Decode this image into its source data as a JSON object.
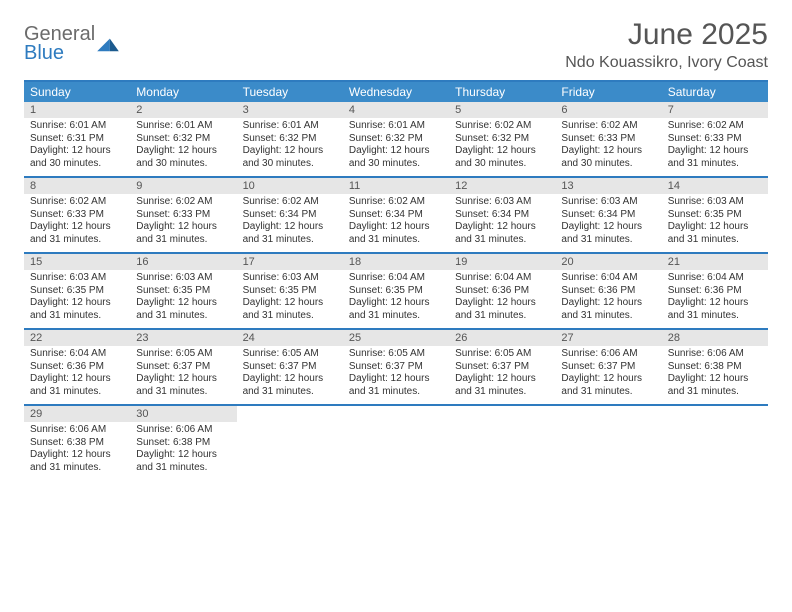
{
  "brand": {
    "word1": "General",
    "word2": "Blue"
  },
  "title": "June 2025",
  "location": "Ndo Kouassikro, Ivory Coast",
  "colors": {
    "header_bg": "#3b8bc9",
    "header_border": "#2e7bbf",
    "daynum_bg": "#e6e6e6",
    "text": "#333333",
    "muted": "#555555",
    "white": "#ffffff"
  },
  "typography": {
    "title_fontsize": 30,
    "location_fontsize": 16,
    "dayname_fontsize": 12,
    "daynum_fontsize": 11,
    "info_fontsize": 10
  },
  "layout": {
    "columns": 7,
    "rows": 5
  },
  "dayNames": [
    "Sunday",
    "Monday",
    "Tuesday",
    "Wednesday",
    "Thursday",
    "Friday",
    "Saturday"
  ],
  "weeks": [
    [
      {
        "day": "1",
        "sunrise": "Sunrise: 6:01 AM",
        "sunset": "Sunset: 6:31 PM",
        "daylight": "Daylight: 12 hours and 30 minutes."
      },
      {
        "day": "2",
        "sunrise": "Sunrise: 6:01 AM",
        "sunset": "Sunset: 6:32 PM",
        "daylight": "Daylight: 12 hours and 30 minutes."
      },
      {
        "day": "3",
        "sunrise": "Sunrise: 6:01 AM",
        "sunset": "Sunset: 6:32 PM",
        "daylight": "Daylight: 12 hours and 30 minutes."
      },
      {
        "day": "4",
        "sunrise": "Sunrise: 6:01 AM",
        "sunset": "Sunset: 6:32 PM",
        "daylight": "Daylight: 12 hours and 30 minutes."
      },
      {
        "day": "5",
        "sunrise": "Sunrise: 6:02 AM",
        "sunset": "Sunset: 6:32 PM",
        "daylight": "Daylight: 12 hours and 30 minutes."
      },
      {
        "day": "6",
        "sunrise": "Sunrise: 6:02 AM",
        "sunset": "Sunset: 6:33 PM",
        "daylight": "Daylight: 12 hours and 30 minutes."
      },
      {
        "day": "7",
        "sunrise": "Sunrise: 6:02 AM",
        "sunset": "Sunset: 6:33 PM",
        "daylight": "Daylight: 12 hours and 31 minutes."
      }
    ],
    [
      {
        "day": "8",
        "sunrise": "Sunrise: 6:02 AM",
        "sunset": "Sunset: 6:33 PM",
        "daylight": "Daylight: 12 hours and 31 minutes."
      },
      {
        "day": "9",
        "sunrise": "Sunrise: 6:02 AM",
        "sunset": "Sunset: 6:33 PM",
        "daylight": "Daylight: 12 hours and 31 minutes."
      },
      {
        "day": "10",
        "sunrise": "Sunrise: 6:02 AM",
        "sunset": "Sunset: 6:34 PM",
        "daylight": "Daylight: 12 hours and 31 minutes."
      },
      {
        "day": "11",
        "sunrise": "Sunrise: 6:02 AM",
        "sunset": "Sunset: 6:34 PM",
        "daylight": "Daylight: 12 hours and 31 minutes."
      },
      {
        "day": "12",
        "sunrise": "Sunrise: 6:03 AM",
        "sunset": "Sunset: 6:34 PM",
        "daylight": "Daylight: 12 hours and 31 minutes."
      },
      {
        "day": "13",
        "sunrise": "Sunrise: 6:03 AM",
        "sunset": "Sunset: 6:34 PM",
        "daylight": "Daylight: 12 hours and 31 minutes."
      },
      {
        "day": "14",
        "sunrise": "Sunrise: 6:03 AM",
        "sunset": "Sunset: 6:35 PM",
        "daylight": "Daylight: 12 hours and 31 minutes."
      }
    ],
    [
      {
        "day": "15",
        "sunrise": "Sunrise: 6:03 AM",
        "sunset": "Sunset: 6:35 PM",
        "daylight": "Daylight: 12 hours and 31 minutes."
      },
      {
        "day": "16",
        "sunrise": "Sunrise: 6:03 AM",
        "sunset": "Sunset: 6:35 PM",
        "daylight": "Daylight: 12 hours and 31 minutes."
      },
      {
        "day": "17",
        "sunrise": "Sunrise: 6:03 AM",
        "sunset": "Sunset: 6:35 PM",
        "daylight": "Daylight: 12 hours and 31 minutes."
      },
      {
        "day": "18",
        "sunrise": "Sunrise: 6:04 AM",
        "sunset": "Sunset: 6:35 PM",
        "daylight": "Daylight: 12 hours and 31 minutes."
      },
      {
        "day": "19",
        "sunrise": "Sunrise: 6:04 AM",
        "sunset": "Sunset: 6:36 PM",
        "daylight": "Daylight: 12 hours and 31 minutes."
      },
      {
        "day": "20",
        "sunrise": "Sunrise: 6:04 AM",
        "sunset": "Sunset: 6:36 PM",
        "daylight": "Daylight: 12 hours and 31 minutes."
      },
      {
        "day": "21",
        "sunrise": "Sunrise: 6:04 AM",
        "sunset": "Sunset: 6:36 PM",
        "daylight": "Daylight: 12 hours and 31 minutes."
      }
    ],
    [
      {
        "day": "22",
        "sunrise": "Sunrise: 6:04 AM",
        "sunset": "Sunset: 6:36 PM",
        "daylight": "Daylight: 12 hours and 31 minutes."
      },
      {
        "day": "23",
        "sunrise": "Sunrise: 6:05 AM",
        "sunset": "Sunset: 6:37 PM",
        "daylight": "Daylight: 12 hours and 31 minutes."
      },
      {
        "day": "24",
        "sunrise": "Sunrise: 6:05 AM",
        "sunset": "Sunset: 6:37 PM",
        "daylight": "Daylight: 12 hours and 31 minutes."
      },
      {
        "day": "25",
        "sunrise": "Sunrise: 6:05 AM",
        "sunset": "Sunset: 6:37 PM",
        "daylight": "Daylight: 12 hours and 31 minutes."
      },
      {
        "day": "26",
        "sunrise": "Sunrise: 6:05 AM",
        "sunset": "Sunset: 6:37 PM",
        "daylight": "Daylight: 12 hours and 31 minutes."
      },
      {
        "day": "27",
        "sunrise": "Sunrise: 6:06 AM",
        "sunset": "Sunset: 6:37 PM",
        "daylight": "Daylight: 12 hours and 31 minutes."
      },
      {
        "day": "28",
        "sunrise": "Sunrise: 6:06 AM",
        "sunset": "Sunset: 6:38 PM",
        "daylight": "Daylight: 12 hours and 31 minutes."
      }
    ],
    [
      {
        "day": "29",
        "sunrise": "Sunrise: 6:06 AM",
        "sunset": "Sunset: 6:38 PM",
        "daylight": "Daylight: 12 hours and 31 minutes."
      },
      {
        "day": "30",
        "sunrise": "Sunrise: 6:06 AM",
        "sunset": "Sunset: 6:38 PM",
        "daylight": "Daylight: 12 hours and 31 minutes."
      },
      null,
      null,
      null,
      null,
      null
    ]
  ]
}
